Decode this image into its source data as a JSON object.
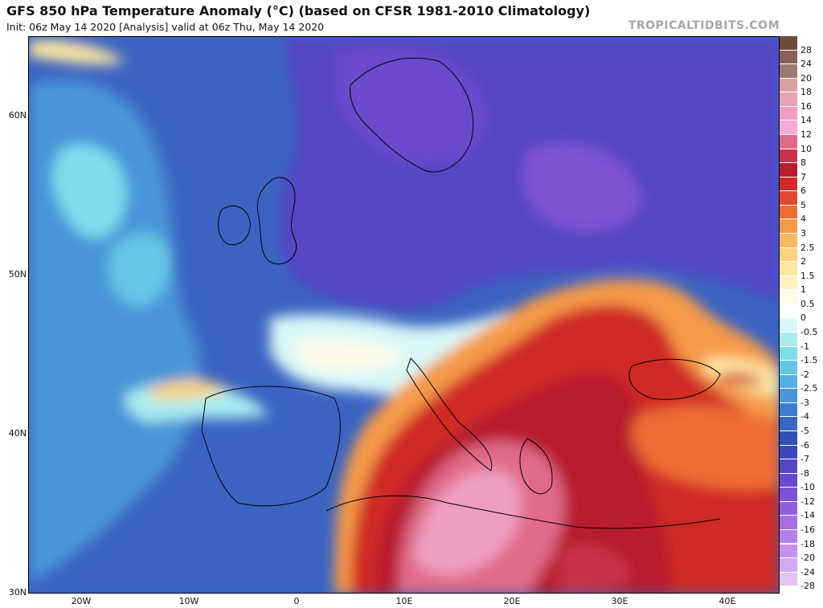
{
  "header": {
    "title": "GFS 850 hPa Temperature Anomaly (°C) (based on CFSR 1981-2010 Climatology)",
    "subtitle": "Init: 06z May 14 2020   [Analysis]   valid at 06z Thu, May 14 2020",
    "watermark": "TROPICALTIDBITS.COM"
  },
  "axes": {
    "lat_labels": [
      "60N",
      "50N",
      "40N",
      "30N"
    ],
    "lat_values": [
      60,
      50,
      40,
      30
    ],
    "lon_labels": [
      "20W",
      "10W",
      "0",
      "10E",
      "20E",
      "30E",
      "40E"
    ],
    "lon_values": [
      -20,
      -10,
      0,
      10,
      20,
      30,
      40
    ],
    "lat_range": [
      30,
      65
    ],
    "lon_range": [
      -25,
      45
    ]
  },
  "colorbar": {
    "levels": [
      "28",
      "24",
      "20",
      "18",
      "16",
      "14",
      "12",
      "10",
      "8",
      "7",
      "6",
      "5",
      "4",
      "3",
      "2.5",
      "2",
      "1.5",
      "1",
      "0.5",
      "0",
      "-0.5",
      "-1",
      "-1.5",
      "-2",
      "-2.5",
      "-3",
      "-4",
      "-5",
      "-6",
      "-7",
      "-8",
      "-10",
      "-12",
      "-14",
      "-16",
      "-18",
      "-20",
      "-24",
      "-28"
    ],
    "colors": [
      "#6e4a3f",
      "#876058",
      "#a07a72",
      "#d6a2a0",
      "#e6a3b6",
      "#ef9ec2",
      "#f5abd6",
      "#e06a88",
      "#c8324a",
      "#b81f2e",
      "#d02a28",
      "#e14a2e",
      "#ee6c35",
      "#f59a4a",
      "#f8b765",
      "#fbd27f",
      "#fde6a0",
      "#fef3c2",
      "#fffbe8",
      "#ffffff",
      "#d9f8f8",
      "#a8ecf0",
      "#7fdcea",
      "#66c6e6",
      "#55aee1",
      "#4a94d8",
      "#3f7ccd",
      "#3866c2",
      "#2f50b4",
      "#3c48b8",
      "#5446c4",
      "#6a48cc",
      "#7e52d4",
      "#925fdc",
      "#a56ee2",
      "#b57fe8",
      "#c592ee",
      "#d5a8f2",
      "#e5c2f6"
    ]
  },
  "map": {
    "regions": [
      {
        "name": "north-atlantic-anomaly",
        "anomaly": -5,
        "color": "#3866c2"
      },
      {
        "name": "western-atlantic-cool-patch",
        "anomaly": -2,
        "color": "#66c6e6"
      },
      {
        "name": "northern-europe-cold-anomaly",
        "anomaly": -8,
        "color": "#5446c4"
      },
      {
        "name": "scandinavia-cold-anomaly",
        "anomaly": -10,
        "color": "#6a48cc"
      },
      {
        "name": "france-near-normal",
        "anomaly": 0.5,
        "color": "#fffbe8"
      },
      {
        "name": "iberia-cool-anomaly",
        "anomaly": -5,
        "color": "#3866c2"
      },
      {
        "name": "eastern-mediterranean-warm-anomaly",
        "anomaly": 6,
        "color": "#d02a28"
      },
      {
        "name": "central-mediterranean-warm-core",
        "anomaly": 14,
        "color": "#ef9ec2"
      },
      {
        "name": "balkans-warm-anomaly",
        "anomaly": 7,
        "color": "#b81f2e"
      },
      {
        "name": "turkey-warm-anomaly",
        "anomaly": 4,
        "color": "#ee6c35"
      }
    ]
  }
}
